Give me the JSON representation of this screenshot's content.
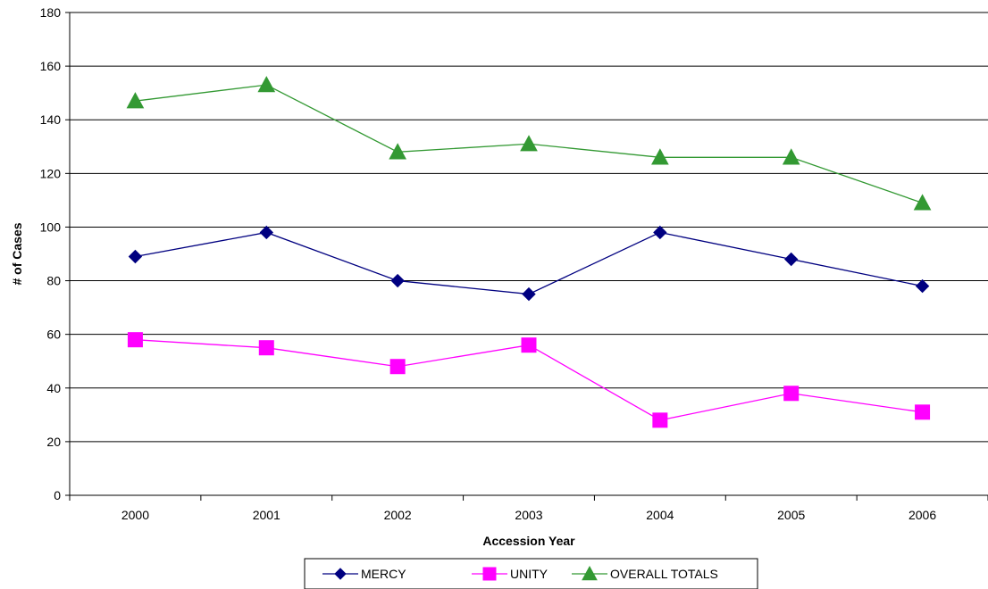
{
  "chart_data": {
    "type": "line",
    "categories": [
      "2000",
      "2001",
      "2002",
      "2003",
      "2004",
      "2005",
      "2006"
    ],
    "series": [
      {
        "name": "MERCY",
        "values": [
          89,
          98,
          80,
          75,
          98,
          88,
          78
        ],
        "color": "#000080",
        "marker": "diamond"
      },
      {
        "name": "UNITY",
        "values": [
          58,
          55,
          48,
          56,
          28,
          38,
          31
        ],
        "color": "#ff00ff",
        "marker": "square"
      },
      {
        "name": "OVERALL TOTALS",
        "values": [
          147,
          153,
          128,
          131,
          126,
          126,
          109
        ],
        "color": "#339933",
        "marker": "triangle"
      }
    ],
    "xlabel": "Accession Year",
    "ylabel": "# of Cases",
    "ylim": [
      0,
      180
    ],
    "yticks": [
      "0",
      "20",
      "40",
      "60",
      "80",
      "100",
      "120",
      "140",
      "160",
      "180"
    ],
    "grid": true,
    "legend_position": "bottom"
  }
}
